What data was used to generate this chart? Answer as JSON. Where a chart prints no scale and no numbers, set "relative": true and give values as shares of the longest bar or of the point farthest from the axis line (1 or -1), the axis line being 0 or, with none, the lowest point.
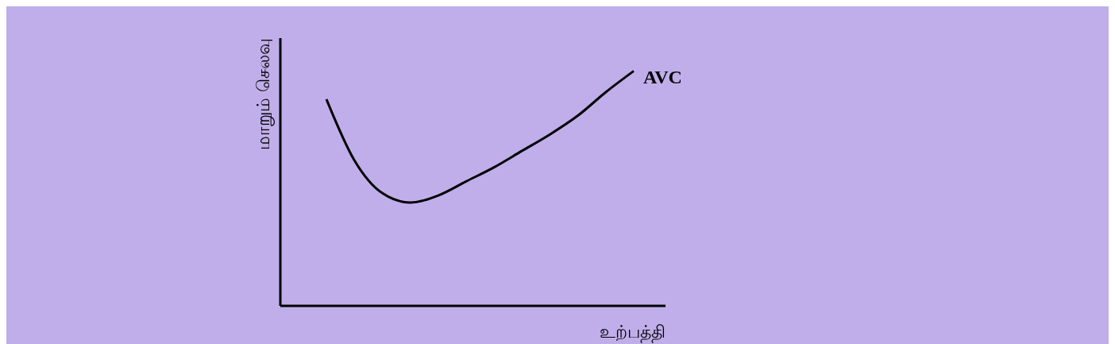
{
  "chart_data": {
    "type": "line",
    "relative": true,
    "xlabel": "உற்பத்தி",
    "ylabel": "மாறும் செலவு",
    "categories": [
      null,
      null,
      null,
      null,
      null,
      null,
      null,
      null,
      null,
      null,
      null,
      null
    ],
    "series": [
      {
        "name": "AVC",
        "color": "#000000",
        "values": [
          0.88,
          0.62,
          0.48,
          0.44,
          0.47,
          0.53,
          0.59,
          0.66,
          0.73,
          0.81,
          0.91,
          1
        ]
      }
    ],
    "marker": "none",
    "line_style": "solid"
  }
}
